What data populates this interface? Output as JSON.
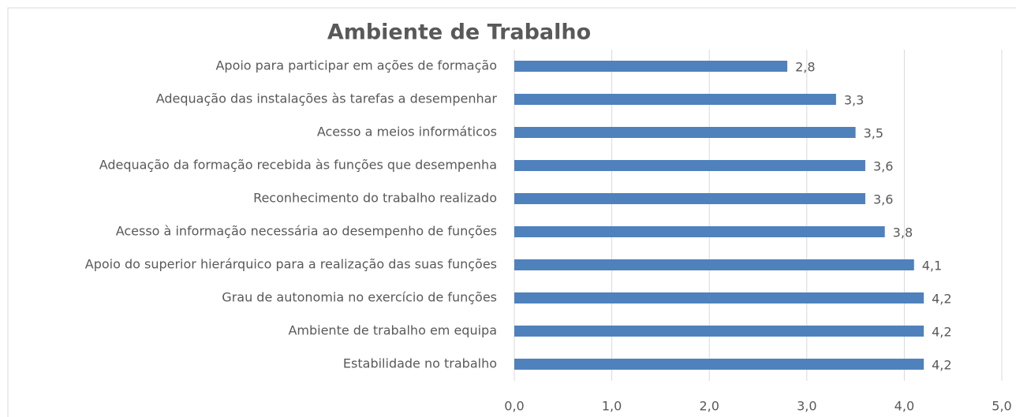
{
  "chart_data": {
    "type": "bar",
    "orientation": "horizontal",
    "title": "Ambiente de Trabalho",
    "categories": [
      "Apoio para participar em ações de formação",
      "Adequação das instalações às tarefas a desempenhar",
      "Acesso a meios informáticos",
      "Adequação da formação recebida às funções que desempenha",
      "Reconhecimento do trabalho realizado",
      "Acesso à informação necessária ao desempenho de funções",
      "Apoio do superior hierárquico para a realização das suas funções",
      "Grau de autonomia no exercício de funções",
      "Ambiente de trabalho em equipa",
      "Estabilidade no trabalho"
    ],
    "values": [
      2.8,
      3.3,
      3.5,
      3.6,
      3.6,
      3.8,
      4.1,
      4.2,
      4.2,
      4.2
    ],
    "value_labels": [
      "2,8",
      "3,3",
      "3,5",
      "3,6",
      "3,6",
      "3,8",
      "4,1",
      "4,2",
      "4,2",
      "4,2"
    ],
    "color": "#4f81bd",
    "xlim": [
      0,
      5
    ],
    "xticks": [
      {
        "value": 0,
        "label": "0,0"
      },
      {
        "value": 1,
        "label": "1,0"
      },
      {
        "value": 2,
        "label": "2,0"
      },
      {
        "value": 3,
        "label": "3,0"
      },
      {
        "value": 4,
        "label": "4,0"
      },
      {
        "value": 5,
        "label": "5,0"
      }
    ],
    "grid": true
  }
}
